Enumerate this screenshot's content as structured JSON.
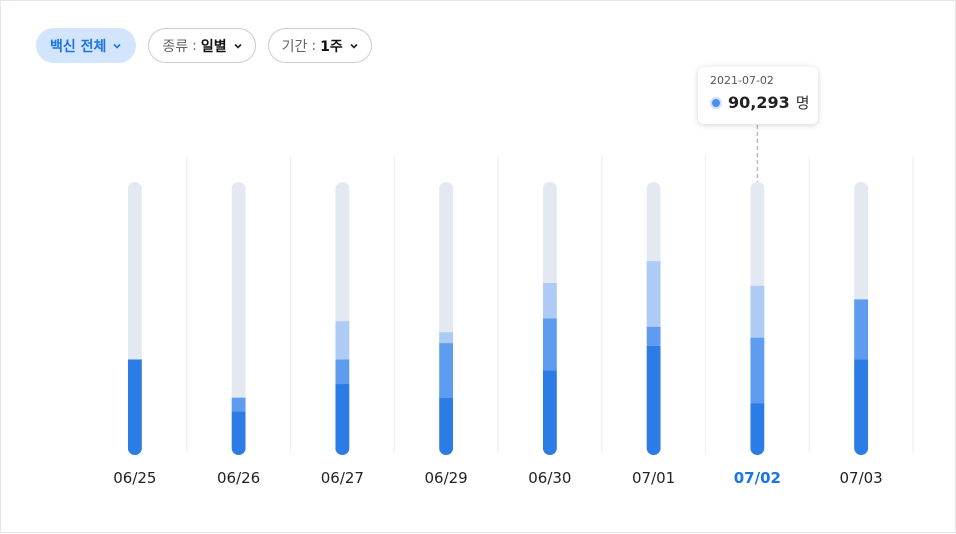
{
  "filters": {
    "vaccine": {
      "label": "백신 전체"
    },
    "type": {
      "label": "종류",
      "sep": ":",
      "value": "일별"
    },
    "period": {
      "label": "기간",
      "sep": ":",
      "value": "1주"
    }
  },
  "tooltip": {
    "date": "2021-07-02",
    "value": "90,293",
    "unit": "명"
  },
  "colors": {
    "track": "#e3e8f1",
    "dark": "#2b7de5",
    "mid": "#5d9cee",
    "light": "#aecbf6",
    "active_label": "#1a73e8"
  },
  "chart_data": {
    "type": "bar",
    "stacked": true,
    "categories": [
      "06/25",
      "06/26",
      "06/27",
      "06/29",
      "06/30",
      "07/01",
      "07/02",
      "07/03"
    ],
    "highlighted_category": "07/02",
    "ylim": [
      0,
      1
    ],
    "series": [
      {
        "values": [
          0.35,
          0.16,
          0.26,
          0.21,
          0.31,
          0.4,
          0.19,
          0.35
        ],
        "color": "#2b7de5"
      },
      {
        "values": [
          0.0,
          0.05,
          0.09,
          0.2,
          0.19,
          0.07,
          0.24,
          0.22
        ],
        "color": "#5d9cee"
      },
      {
        "values": [
          0.0,
          0.0,
          0.14,
          0.04,
          0.13,
          0.24,
          0.19,
          0.0
        ],
        "color": "#aecbf6"
      }
    ],
    "grid": true,
    "legend": "none"
  }
}
